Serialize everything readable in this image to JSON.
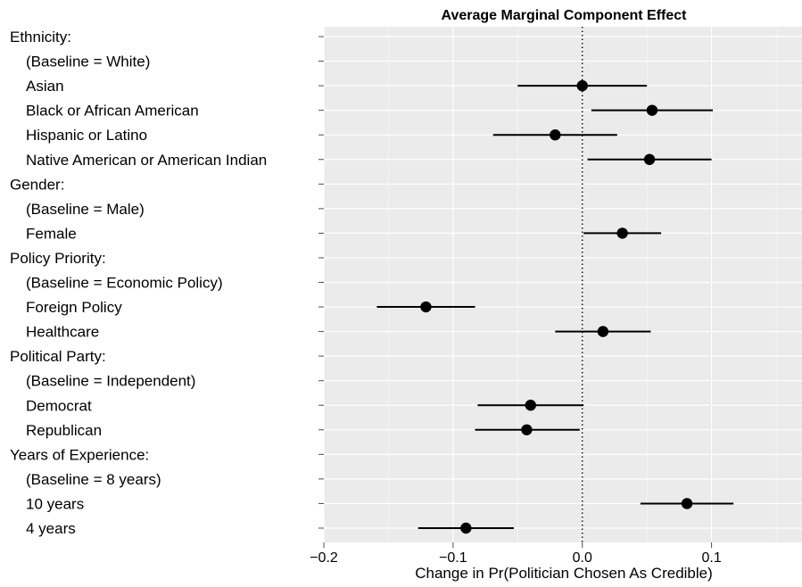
{
  "chart_data": {
    "type": "scatter",
    "title": "Average Marginal Component Effect",
    "xlabel": "Change in Pr(Politician Chosen As Credible)",
    "ylabel": "",
    "xlim": [
      -0.2,
      0.17
    ],
    "x_ticks": [
      -0.2,
      -0.1,
      0.0,
      0.1
    ],
    "x_tick_labels": [
      "−0.2",
      "−0.1",
      "0.0",
      "0.1"
    ],
    "reference_line": 0,
    "grid": true,
    "rows": [
      {
        "label": "Ethnicity:",
        "heading": true
      },
      {
        "label": "(Baseline = White)",
        "heading": false
      },
      {
        "label": "Asian",
        "heading": false,
        "estimate": 0.0,
        "lower": -0.05,
        "upper": 0.05
      },
      {
        "label": "Black or African American",
        "heading": false,
        "estimate": 0.054,
        "lower": 0.007,
        "upper": 0.101
      },
      {
        "label": "Hispanic or Latino",
        "heading": false,
        "estimate": -0.021,
        "lower": -0.069,
        "upper": 0.027
      },
      {
        "label": "Native American or American Indian",
        "heading": false,
        "estimate": 0.052,
        "lower": 0.004,
        "upper": 0.1
      },
      {
        "label": "Gender:",
        "heading": true
      },
      {
        "label": "(Baseline = Male)",
        "heading": false
      },
      {
        "label": "Female",
        "heading": false,
        "estimate": 0.031,
        "lower": 0.001,
        "upper": 0.061
      },
      {
        "label": "Policy Priority:",
        "heading": true
      },
      {
        "label": "(Baseline = Economic Policy)",
        "heading": false
      },
      {
        "label": "Foreign Policy",
        "heading": false,
        "estimate": -0.121,
        "lower": -0.159,
        "upper": -0.083
      },
      {
        "label": "Healthcare",
        "heading": false,
        "estimate": 0.016,
        "lower": -0.021,
        "upper": 0.053
      },
      {
        "label": "Political Party:",
        "heading": true
      },
      {
        "label": "(Baseline = Independent)",
        "heading": false
      },
      {
        "label": "Democrat",
        "heading": false,
        "estimate": -0.04,
        "lower": -0.081,
        "upper": 0.001
      },
      {
        "label": "Republican",
        "heading": false,
        "estimate": -0.043,
        "lower": -0.083,
        "upper": -0.002
      },
      {
        "label": "Years of Experience:",
        "heading": true
      },
      {
        "label": "(Baseline = 8 years)",
        "heading": false
      },
      {
        "label": "10 years",
        "heading": false,
        "estimate": 0.081,
        "lower": 0.045,
        "upper": 0.117
      },
      {
        "label": "4 years",
        "heading": false,
        "estimate": -0.09,
        "lower": -0.127,
        "upper": -0.053
      }
    ]
  },
  "colors": {
    "panel": "#ebebeb",
    "grid_major": "#ffffff",
    "grid_minor": "#f4f4f4",
    "point": "#000000",
    "text": "#000000",
    "tick": "#4d4d4d"
  }
}
